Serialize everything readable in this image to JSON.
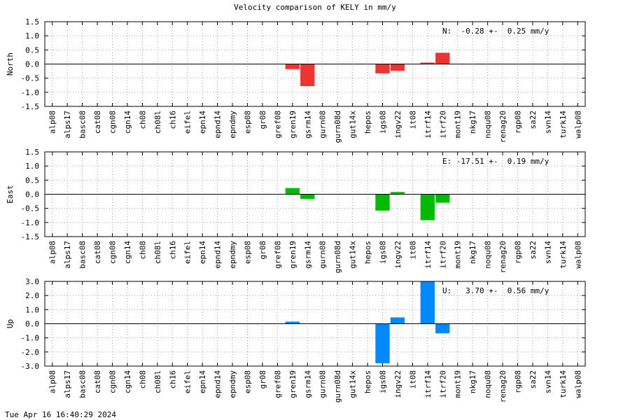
{
  "title": "Velocity comparison of KELY in mm/y",
  "footer": "Tue Apr 16 16:40:29 2024",
  "chart_data": [
    {
      "type": "bar",
      "ylabel": "North",
      "ylim": [
        -1.5,
        1.5
      ],
      "yticks": [
        "1.5",
        "1.0",
        "0.5",
        "0.0",
        "-0.5",
        "-1.0",
        "-1.5"
      ],
      "annotation": "N:  -0.28 +-  0.25 mm/y",
      "color": "#ee3333",
      "categories": [
        "alp08",
        "alps17",
        "basc08",
        "cat08",
        "cgn08",
        "cgn14",
        "ch08",
        "ch08l",
        "ch16",
        "eifel",
        "epn14",
        "epnd14",
        "epndmy",
        "esp08",
        "gr08",
        "gref08",
        "gren19",
        "gsrm14",
        "gurn08",
        "gurn08d",
        "gut14x",
        "hepos",
        "igs08",
        "ingv22",
        "it08",
        "itrf14",
        "itrf20",
        "mont19",
        "nkg17",
        "noqu08",
        "renag20",
        "rgp08",
        "sa22",
        "svn14",
        "turk14",
        "walp08"
      ],
      "values": [
        null,
        null,
        null,
        null,
        null,
        null,
        null,
        null,
        null,
        null,
        null,
        null,
        null,
        null,
        null,
        null,
        -0.18,
        -0.78,
        null,
        null,
        null,
        null,
        -0.33,
        -0.24,
        null,
        0.05,
        0.4,
        null,
        null,
        null,
        null,
        null,
        null,
        null,
        null,
        null
      ]
    },
    {
      "type": "bar",
      "ylabel": "East",
      "ylim": [
        -1.5,
        1.5
      ],
      "yticks": [
        "1.5",
        "1.0",
        "0.5",
        "0.0",
        "-0.5",
        "-1.0",
        "-1.5"
      ],
      "annotation": "E: -17.51 +-  0.19 mm/y",
      "color": "#00bb00",
      "categories": [
        "alp08",
        "alps17",
        "basc08",
        "cat08",
        "cgn08",
        "cgn14",
        "ch08",
        "ch08l",
        "ch16",
        "eifel",
        "epn14",
        "epnd14",
        "epndmy",
        "esp08",
        "gr08",
        "gref08",
        "gren19",
        "gsrm14",
        "gurn08",
        "gurn08d",
        "gut14x",
        "hepos",
        "igs08",
        "ingv22",
        "it08",
        "itrf14",
        "itrf20",
        "mont19",
        "nkg17",
        "noqu08",
        "renag20",
        "rgp08",
        "sa22",
        "svn14",
        "turk14",
        "walp08"
      ],
      "values": [
        null,
        null,
        null,
        null,
        null,
        null,
        null,
        null,
        null,
        null,
        null,
        null,
        null,
        null,
        null,
        null,
        0.22,
        -0.17,
        null,
        null,
        null,
        null,
        -0.58,
        0.08,
        null,
        -0.92,
        -0.3,
        null,
        null,
        null,
        null,
        null,
        null,
        null,
        null,
        null
      ]
    },
    {
      "type": "bar",
      "ylabel": "Up",
      "ylim": [
        -3.0,
        3.0
      ],
      "yticks": [
        "3.0",
        "2.0",
        "1.0",
        "0.0",
        "-1.0",
        "-2.0",
        "-3.0"
      ],
      "annotation": "U:   3.70 +-  0.56 mm/y",
      "color": "#0088ff",
      "categories": [
        "alp08",
        "alps17",
        "basc08",
        "cat08",
        "cgn08",
        "cgn14",
        "ch08",
        "ch08l",
        "ch16",
        "eifel",
        "epn14",
        "epnd14",
        "epndmy",
        "esp08",
        "gr08",
        "gref08",
        "gren19",
        "gsrm14",
        "gurn08",
        "gurn08d",
        "gut14x",
        "hepos",
        "igs08",
        "ingv22",
        "it08",
        "itrf14",
        "itrf20",
        "mont19",
        "nkg17",
        "noqu08",
        "renag20",
        "rgp08",
        "sa22",
        "svn14",
        "turk14",
        "walp08"
      ],
      "values": [
        null,
        null,
        null,
        null,
        null,
        null,
        null,
        null,
        null,
        null,
        null,
        null,
        null,
        null,
        null,
        null,
        0.15,
        null,
        null,
        null,
        null,
        null,
        -2.8,
        0.45,
        null,
        3.0,
        -0.68,
        null,
        null,
        null,
        null,
        null,
        null,
        null,
        null,
        null
      ]
    }
  ]
}
